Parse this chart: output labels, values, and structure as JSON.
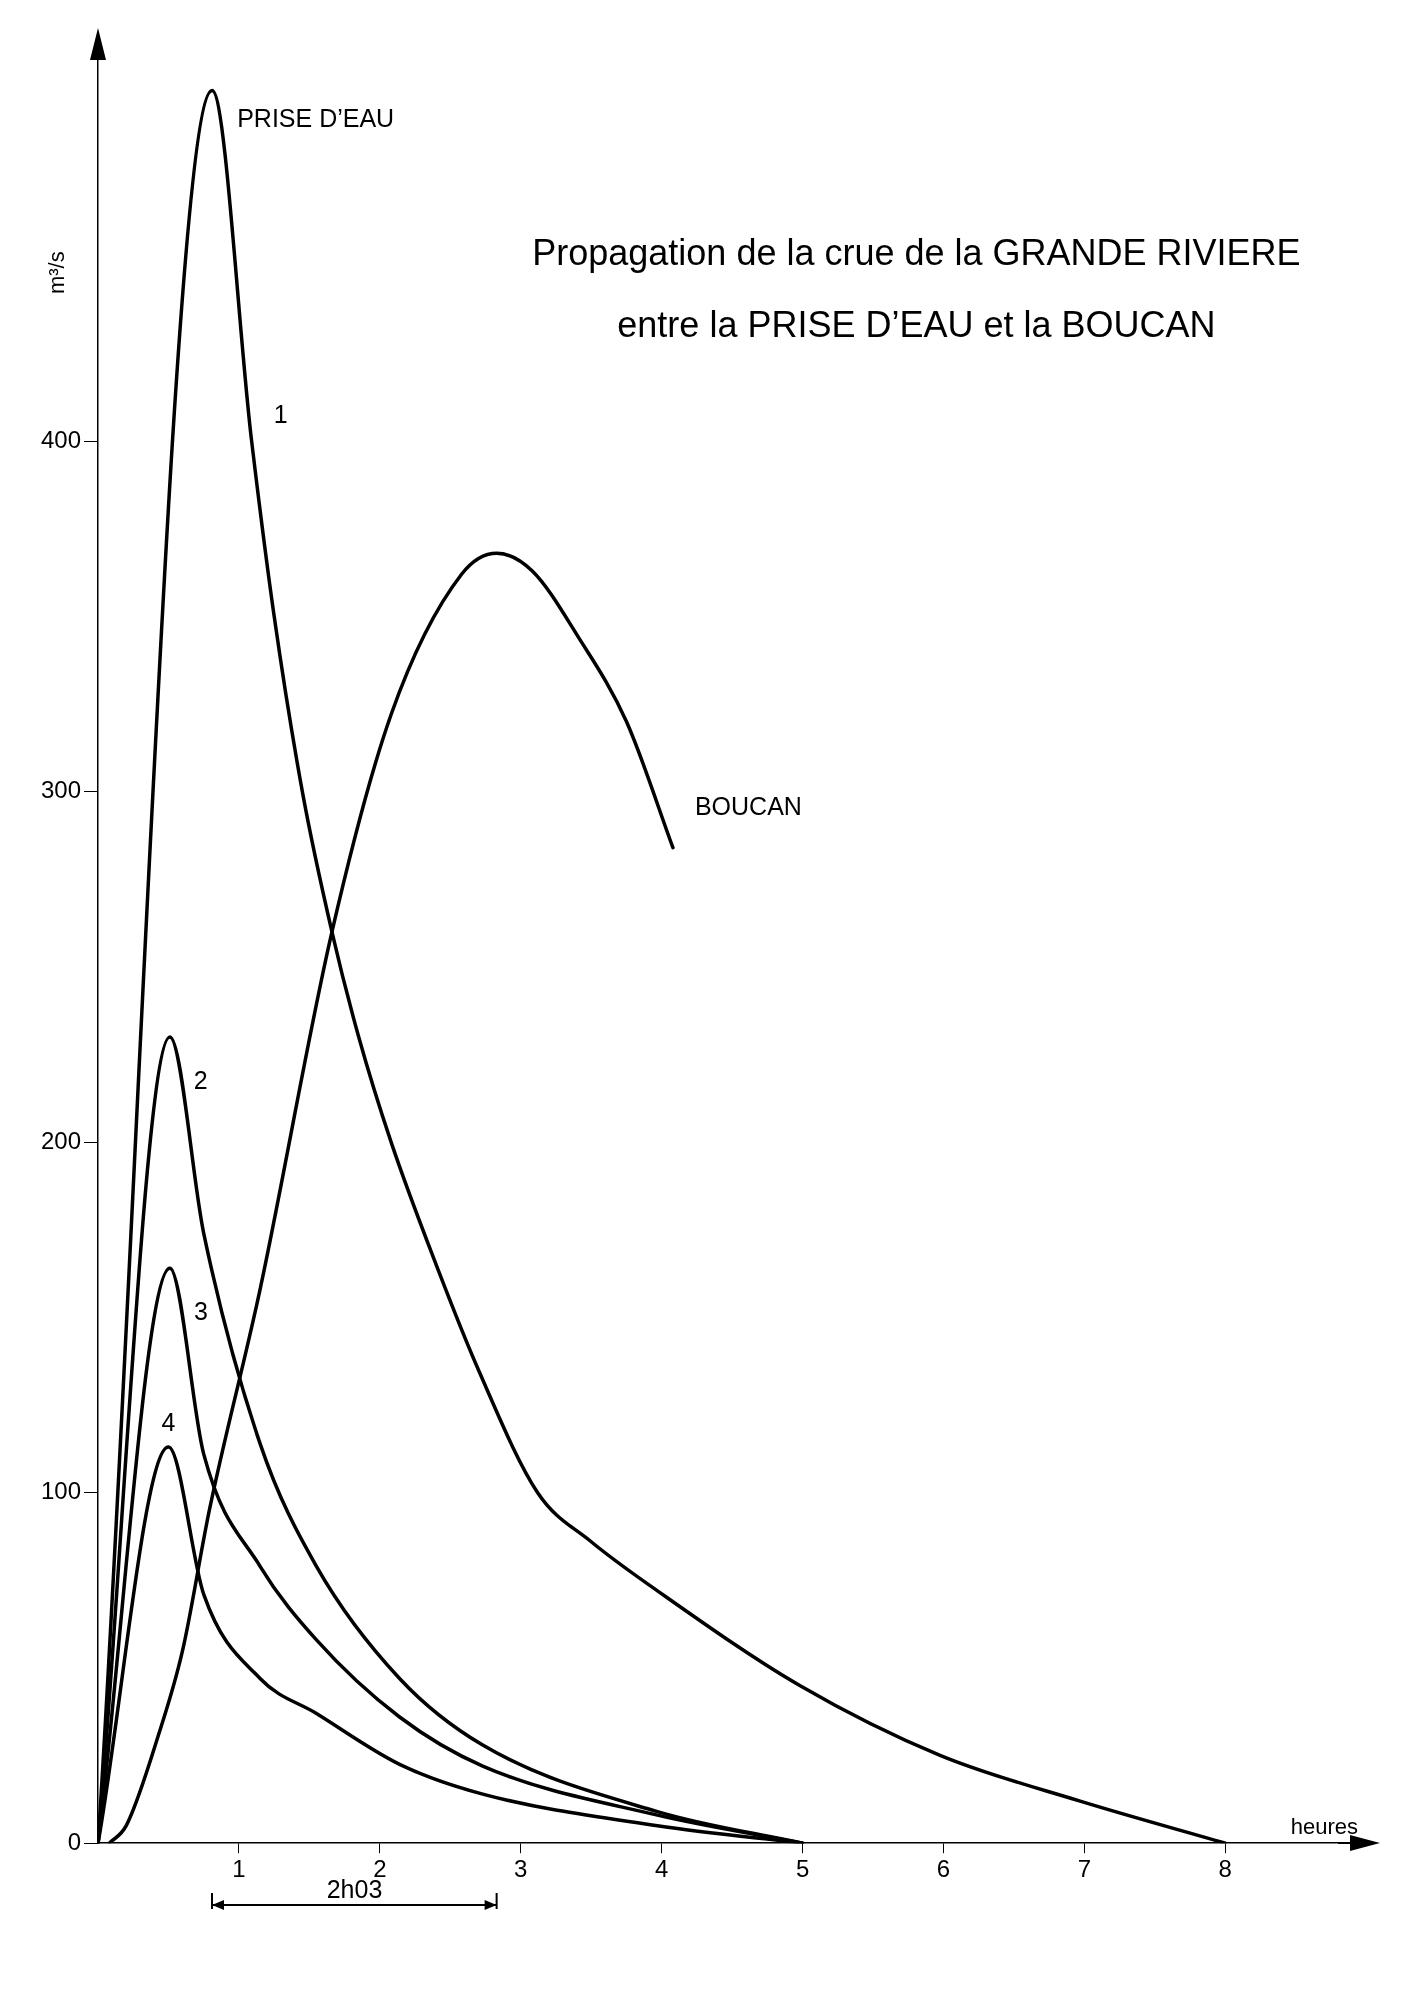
{
  "chart_data": {
    "type": "line",
    "title": "Propagation de la crue de la GRANDE RIVIERE",
    "subtitle": "entre la PRISE D’EAU et la BOUCAN",
    "xlabel": "heures",
    "ylabel": "m³/s",
    "xlim": [
      0,
      8.8
    ],
    "xticks": [
      1,
      2,
      3,
      4,
      5,
      6,
      7,
      8
    ],
    "ylim": [
      0,
      515
    ],
    "yticks": [
      0,
      100,
      200,
      300,
      400
    ],
    "grid": false,
    "marker": "none",
    "line_style": "solid",
    "series": [
      {
        "name": "1",
        "color": "#000000",
        "x": [
          0,
          0.81,
          1.09,
          1.25,
          1.45,
          1.66,
          1.85,
          2.08,
          2.4,
          2.7,
          3.12,
          3.5,
          3.97,
          4.98,
          5.98,
          6.97,
          8
        ],
        "values": [
          0,
          500,
          400,
          350,
          300,
          260,
          230,
          200,
          165,
          135,
          100,
          86,
          72,
          45,
          25,
          12,
          0
        ]
      },
      {
        "name": "2",
        "color": "#000000",
        "x": [
          0,
          0.51,
          0.75,
          1.15,
          1.55,
          2.14,
          2.73,
          3.97,
          5
        ],
        "values": [
          0,
          230,
          174,
          114,
          79,
          47,
          28,
          9,
          0
        ]
      },
      {
        "name": "3",
        "color": "#000000",
        "x": [
          0,
          0.51,
          0.75,
          1.15,
          1.55,
          2.14,
          2.73,
          3.97,
          5
        ],
        "values": [
          0,
          164,
          111,
          79,
          58,
          36,
          22,
          8,
          0
        ]
      },
      {
        "name": "4",
        "color": "#000000",
        "x": [
          0,
          0.5,
          0.75,
          1.15,
          1.55,
          2.14,
          2.73,
          3.97,
          5
        ],
        "values": [
          0,
          113,
          71,
          47,
          37,
          22.5,
          14,
          5,
          0
        ]
      },
      {
        "name": "BOUCAN",
        "color": "#000000",
        "x": [
          0.08,
          0.2,
          0.43,
          0.6,
          0.79,
          1.15,
          1.66,
          2.08,
          2.58,
          2.83,
          3.08,
          3.41,
          3.75,
          4.08
        ],
        "values": [
          0,
          5,
          31,
          55,
          95,
          158,
          260,
          322,
          362,
          368,
          363,
          344,
          320,
          284
        ]
      }
    ],
    "annotations": [
      "PRISE D’EAU",
      "2h03"
    ]
  }
}
